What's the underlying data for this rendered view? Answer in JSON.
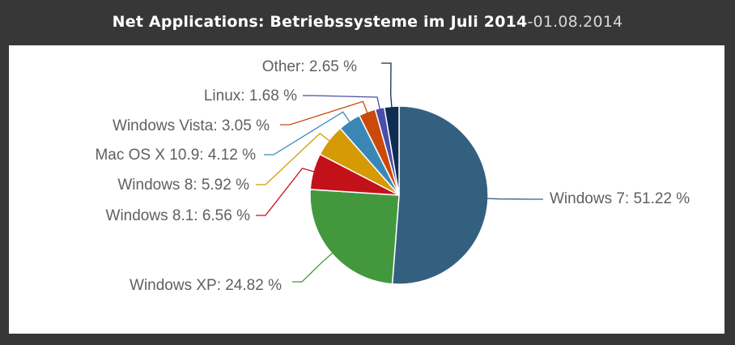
{
  "header": {
    "title": "Net Applications: Betriebssysteme im Juli 2014",
    "separator": " - ",
    "date": "01.08.2014"
  },
  "chart_data": {
    "type": "pie",
    "title": "Net Applications: Betriebssysteme im Juli 2014",
    "slices": [
      {
        "name": "Windows 7",
        "value": 51.22,
        "label": "Windows 7: 51.22 %",
        "color": "#34607f"
      },
      {
        "name": "Windows XP",
        "value": 24.82,
        "label": "Windows XP: 24.82 %",
        "color": "#43983e"
      },
      {
        "name": "Windows 8.1",
        "value": 6.56,
        "label": "Windows 8.1: 6.56 %",
        "color": "#c3111a"
      },
      {
        "name": "Windows 8",
        "value": 5.92,
        "label": "Windows 8: 5.92 %",
        "color": "#d69a06"
      },
      {
        "name": "Mac OS X 10.9",
        "value": 4.12,
        "label": "Mac OS X 10.9: 4.12 %",
        "color": "#3a87b6"
      },
      {
        "name": "Windows Vista",
        "value": 3.05,
        "label": "Windows Vista: 3.05 %",
        "color": "#ca4a0b"
      },
      {
        "name": "Linux",
        "value": 1.68,
        "label": "Linux: 1.68 %",
        "color": "#4b4dac"
      },
      {
        "name": "Other",
        "value": 2.65,
        "label": "Other: 2.65 %",
        "color": "#0f2d52"
      }
    ],
    "data_labels": "outside with connector lines",
    "legend": "none"
  }
}
